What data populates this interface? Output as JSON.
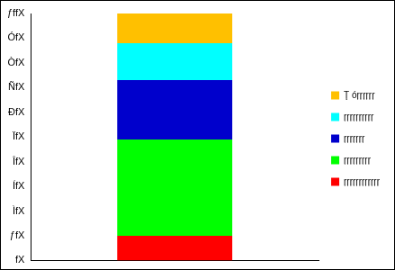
{
  "chart_data": {
    "type": "bar",
    "stacked": true,
    "legend": "right",
    "grid": false,
    "tick_labels": "y",
    "categories": [
      null
    ],
    "series": [
      {
        "name": "ŗŗŗŗŗŗŗŗŗŗŗŗ",
        "color": "#ff0000",
        "values": [
          10
        ]
      },
      {
        "name": "ŗŗŗŗŗŗŗŗŗ",
        "color": "#00ff00",
        "values": [
          39
        ]
      },
      {
        "name": "ŗŗŗŗŗŗŗ",
        "color": "#0000cc",
        "values": [
          24
        ]
      },
      {
        "name": "ŗŗŗŗŗŗŗŗŗŗ",
        "color": "#00ffff",
        "values": [
          15
        ]
      },
      {
        "name": "Ţ óŗŗŗŗŗŗ",
        "color": "#ffc000",
        "values": [
          12
        ]
      }
    ],
    "ylim": [
      0,
      100
    ],
    "yticks": [
      {
        "value": 0,
        "label": "fX"
      },
      {
        "value": 10,
        "label": "ƒfX"
      },
      {
        "value": 20,
        "label": "ÌfX"
      },
      {
        "value": 30,
        "label": "ÍfX"
      },
      {
        "value": 40,
        "label": "ÎfX"
      },
      {
        "value": 50,
        "label": "ÏfX"
      },
      {
        "value": 60,
        "label": "ÐfX"
      },
      {
        "value": 70,
        "label": "ÑfX"
      },
      {
        "value": 80,
        "label": "ÒfX"
      },
      {
        "value": 90,
        "label": "ÓfX"
      },
      {
        "value": 100,
        "label": "ƒffX"
      }
    ]
  }
}
